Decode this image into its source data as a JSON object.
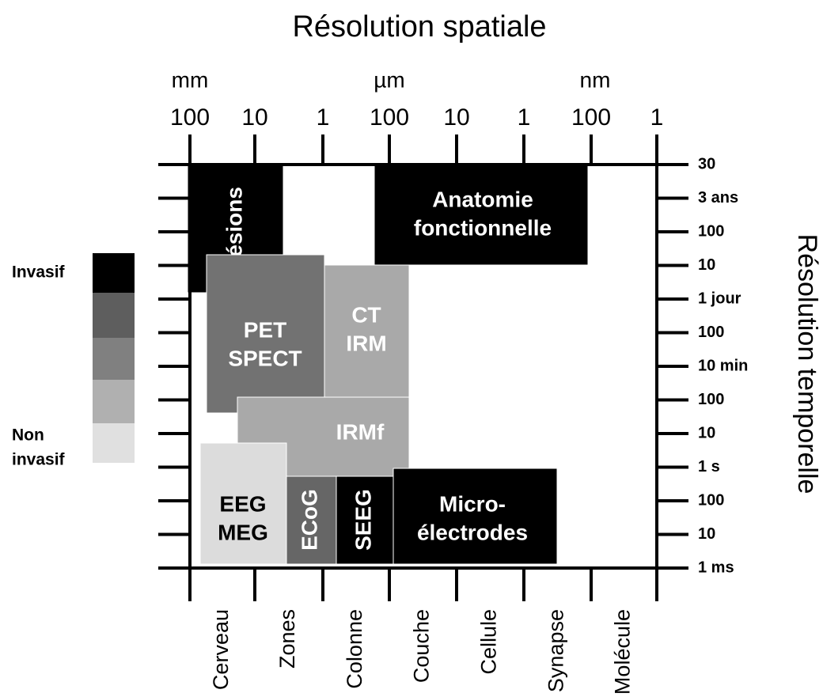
{
  "title": "Résolution spatiale",
  "right_title": "Résolution temporelle",
  "units": [
    "mm",
    "µm",
    "nm"
  ],
  "top_ticks": [
    "100",
    "10",
    "1",
    "100",
    "10",
    "1",
    "100",
    "1"
  ],
  "right_ticks": [
    "30",
    "3 ans",
    "100",
    "10",
    "1 jour",
    "100",
    "10 min",
    "100",
    "10",
    "1 s",
    "100",
    "10",
    "1 ms"
  ],
  "bottom_labels": [
    "Cerveau",
    "Zones",
    "Colonne",
    "Couche",
    "Cellule",
    "Synapse",
    "Molécule"
  ],
  "boxes": [
    {
      "lines": [
        "Lésions"
      ],
      "color": "#000000"
    },
    {
      "lines": [
        "Anatomie",
        "fonctionnelle"
      ],
      "color": "#000000"
    },
    {
      "lines": [
        "PET",
        "SPECT"
      ],
      "color": "#727272"
    },
    {
      "lines": [
        "CT",
        "IRM"
      ],
      "color": "#a9a9a9"
    },
    {
      "lines": [
        "IRMf"
      ],
      "color": "#a9a9a9"
    },
    {
      "lines": [
        "EEG",
        "MEG"
      ],
      "color": "#dcdcdc"
    },
    {
      "lines": [
        "ECoG"
      ],
      "color": "#666666"
    },
    {
      "lines": [
        "SEEG"
      ],
      "color": "#000000"
    },
    {
      "lines": [
        "Micro-",
        "électrodes"
      ],
      "color": "#000000"
    }
  ],
  "legend": {
    "top": "Invasif",
    "bottom": [
      "Non",
      "invasif"
    ],
    "colors": [
      "#000000",
      "#5e5e5e",
      "#808080",
      "#b0b0b0",
      "#e0e0e0"
    ]
  }
}
